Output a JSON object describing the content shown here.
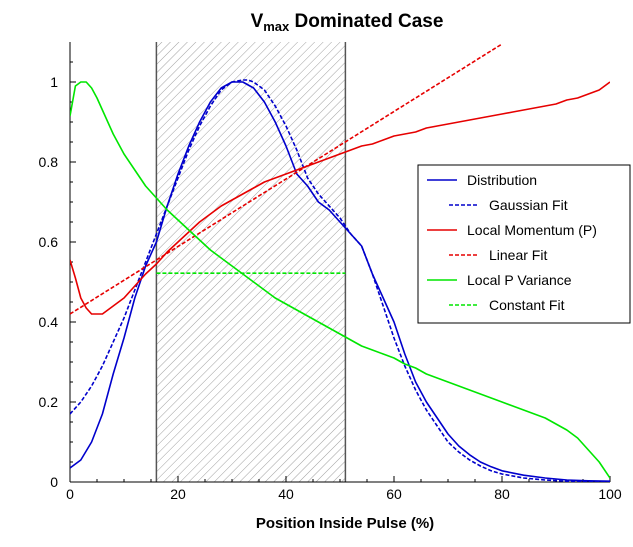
{
  "chart_data": {
    "type": "line",
    "title": {
      "main": "V",
      "subscript": "max",
      "rest": " Dominated Case"
    },
    "xlabel": "Position Inside Pulse (%)",
    "ylabel": "",
    "xlim": [
      0,
      100
    ],
    "ylim": [
      0,
      1.1
    ],
    "xticks": [
      0,
      20,
      40,
      60,
      80,
      100
    ],
    "yticks": [
      0,
      0.2,
      0.4,
      0.6,
      0.8,
      1
    ],
    "ytick_labels": [
      "0",
      "0.2",
      "0.4",
      "0.6",
      "0.8",
      "1"
    ],
    "xtick_labels": [
      "0",
      "20",
      "40",
      "60",
      "80",
      "100"
    ],
    "grid": false,
    "legend_position": "right",
    "shaded_region": {
      "x_start": 16,
      "x_end": 51,
      "pattern": "diagonal-hatch",
      "color": "#999999"
    },
    "series": [
      {
        "name": "Distribution",
        "color": "#0000cc",
        "dash": "solid",
        "x": [
          0,
          2,
          4,
          6,
          8,
          10,
          12,
          14,
          16,
          18,
          20,
          22,
          24,
          26,
          28,
          30,
          32,
          34,
          36,
          38,
          40,
          42,
          44,
          46,
          48,
          50,
          52,
          54,
          56,
          58,
          60,
          62,
          64,
          66,
          68,
          70,
          72,
          74,
          76,
          78,
          80,
          84,
          88,
          92,
          96,
          100
        ],
        "values": [
          0.035,
          0.055,
          0.1,
          0.17,
          0.27,
          0.36,
          0.46,
          0.54,
          0.6,
          0.69,
          0.77,
          0.84,
          0.9,
          0.95,
          0.985,
          1.0,
          1.0,
          0.985,
          0.95,
          0.9,
          0.84,
          0.77,
          0.74,
          0.7,
          0.68,
          0.65,
          0.62,
          0.59,
          0.52,
          0.46,
          0.4,
          0.32,
          0.25,
          0.2,
          0.16,
          0.12,
          0.09,
          0.068,
          0.05,
          0.038,
          0.028,
          0.017,
          0.01,
          0.005,
          0.003,
          0.002
        ]
      },
      {
        "name": "Gaussian Fit",
        "color": "#0000cc",
        "dash": "dashed",
        "x": [
          0,
          2,
          4,
          6,
          8,
          10,
          12,
          14,
          16,
          18,
          20,
          22,
          24,
          26,
          28,
          30,
          32,
          33,
          34,
          36,
          38,
          40,
          42,
          44,
          46,
          48,
          50,
          52,
          54,
          56,
          58,
          60,
          62,
          64,
          66,
          68,
          70,
          72,
          74,
          76,
          78,
          80,
          84,
          88,
          92,
          96,
          100
        ],
        "values": [
          0.17,
          0.2,
          0.24,
          0.29,
          0.35,
          0.41,
          0.48,
          0.55,
          0.62,
          0.69,
          0.76,
          0.83,
          0.89,
          0.94,
          0.98,
          1.0,
          1.005,
          1.005,
          1.0,
          0.98,
          0.94,
          0.89,
          0.83,
          0.76,
          0.72,
          0.69,
          0.66,
          0.62,
          0.59,
          0.52,
          0.44,
          0.36,
          0.29,
          0.23,
          0.18,
          0.14,
          0.1,
          0.075,
          0.055,
          0.04,
          0.028,
          0.02,
          0.01,
          0.005,
          0.002,
          0.001,
          0.0
        ]
      },
      {
        "name": "Local Momentum (P)",
        "color": "#e60000",
        "dash": "solid",
        "x": [
          0,
          1,
          2,
          3,
          4,
          5,
          6,
          8,
          10,
          12,
          14,
          16,
          18,
          20,
          22,
          24,
          26,
          28,
          30,
          32,
          34,
          36,
          38,
          40,
          42,
          44,
          46,
          48,
          50,
          52,
          54,
          56,
          58,
          60,
          62,
          64,
          66,
          68,
          70,
          72,
          74,
          76,
          78,
          80,
          82,
          84,
          86,
          88,
          90,
          92,
          94,
          96,
          98,
          100
        ],
        "values": [
          0.555,
          0.51,
          0.46,
          0.435,
          0.42,
          0.42,
          0.42,
          0.44,
          0.46,
          0.49,
          0.52,
          0.545,
          0.575,
          0.6,
          0.625,
          0.65,
          0.67,
          0.69,
          0.705,
          0.72,
          0.735,
          0.75,
          0.76,
          0.77,
          0.78,
          0.79,
          0.8,
          0.81,
          0.82,
          0.83,
          0.84,
          0.845,
          0.855,
          0.865,
          0.87,
          0.875,
          0.885,
          0.89,
          0.895,
          0.9,
          0.905,
          0.91,
          0.915,
          0.92,
          0.925,
          0.93,
          0.935,
          0.94,
          0.945,
          0.955,
          0.96,
          0.97,
          0.98,
          1.0
        ]
      },
      {
        "name": "Linear Fit",
        "color": "#e60000",
        "dash": "dashed",
        "x": [
          0,
          80
        ],
        "values": [
          0.42,
          1.095
        ]
      },
      {
        "name": "Local P Variance",
        "color": "#00e600",
        "dash": "solid",
        "x": [
          0,
          1,
          2,
          3,
          4,
          5,
          6,
          8,
          10,
          12,
          14,
          16,
          18,
          20,
          22,
          24,
          26,
          28,
          30,
          32,
          34,
          36,
          38,
          40,
          42,
          44,
          46,
          48,
          50,
          52,
          54,
          56,
          58,
          60,
          62,
          64,
          66,
          68,
          70,
          72,
          74,
          76,
          78,
          80,
          82,
          84,
          86,
          88,
          90,
          92,
          94,
          96,
          98,
          100
        ],
        "values": [
          0.915,
          0.99,
          1.0,
          1.0,
          0.985,
          0.96,
          0.93,
          0.87,
          0.82,
          0.78,
          0.74,
          0.71,
          0.68,
          0.655,
          0.63,
          0.605,
          0.58,
          0.56,
          0.54,
          0.52,
          0.5,
          0.48,
          0.46,
          0.445,
          0.43,
          0.415,
          0.4,
          0.385,
          0.37,
          0.355,
          0.34,
          0.33,
          0.32,
          0.31,
          0.295,
          0.285,
          0.27,
          0.26,
          0.25,
          0.24,
          0.23,
          0.22,
          0.21,
          0.2,
          0.19,
          0.18,
          0.17,
          0.16,
          0.145,
          0.13,
          0.11,
          0.08,
          0.05,
          0.01
        ]
      },
      {
        "name": "Constant Fit",
        "color": "#00e600",
        "dash": "dashed",
        "x": [
          16,
          51
        ],
        "values": [
          0.522,
          0.522
        ]
      }
    ]
  }
}
